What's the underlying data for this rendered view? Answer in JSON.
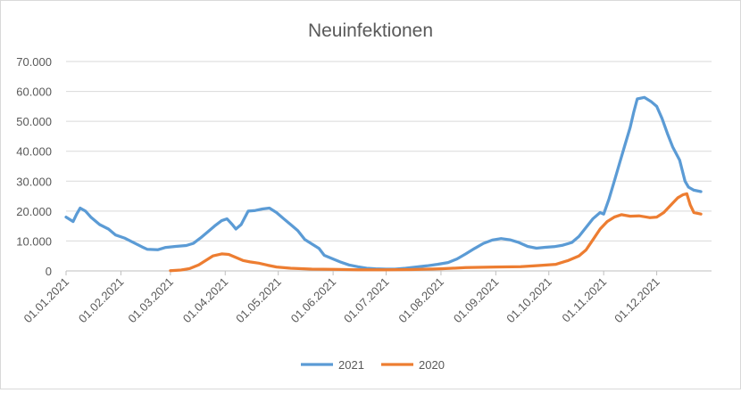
{
  "chart_data": {
    "type": "line",
    "title": "Neuinfektionen",
    "xlabel": "",
    "ylabel": "",
    "ylim": [
      0,
      70000
    ],
    "y_ticks": [
      0,
      10000,
      20000,
      30000,
      40000,
      50000,
      60000,
      70000
    ],
    "y_tick_labels": [
      "0",
      "10.000",
      "20.000",
      "30.000",
      "40.000",
      "50.000",
      "60.000",
      "70.000"
    ],
    "x_tick_labels": [
      "01.01.2021",
      "01.02.2021",
      "01.03.2021",
      "01.04.2021",
      "01.05.2021",
      "01.06.2021",
      "01.07.2021",
      "01.08.2021",
      "01.09.2021",
      "01.10.2021",
      "01.11.2021",
      "01.12.2021"
    ],
    "xlim": [
      "2021-01-01",
      "2021-12-31"
    ],
    "grid": true,
    "legend_position": "bottom",
    "series": [
      {
        "name": "2021",
        "color": "#5b9bd5",
        "points": [
          [
            "2021-01-01",
            18000
          ],
          [
            "2021-01-05",
            16500
          ],
          [
            "2021-01-07",
            19000
          ],
          [
            "2021-01-09",
            21000
          ],
          [
            "2021-01-12",
            20000
          ],
          [
            "2021-01-15",
            18000
          ],
          [
            "2021-01-20",
            15500
          ],
          [
            "2021-01-25",
            14000
          ],
          [
            "2021-01-29",
            12000
          ],
          [
            "2021-02-03",
            11000
          ],
          [
            "2021-02-08",
            9500
          ],
          [
            "2021-02-13",
            8000
          ],
          [
            "2021-02-16",
            7200
          ],
          [
            "2021-02-22",
            7100
          ],
          [
            "2021-02-26",
            7800
          ],
          [
            "2021-03-04",
            8200
          ],
          [
            "2021-03-10",
            8500
          ],
          [
            "2021-03-14",
            9200
          ],
          [
            "2021-03-18",
            11000
          ],
          [
            "2021-03-22",
            13000
          ],
          [
            "2021-03-26",
            15000
          ],
          [
            "2021-03-30",
            16800
          ],
          [
            "2021-04-02",
            17400
          ],
          [
            "2021-04-05",
            15500
          ],
          [
            "2021-04-07",
            14000
          ],
          [
            "2021-04-10",
            15500
          ],
          [
            "2021-04-14",
            20000
          ],
          [
            "2021-04-18",
            20200
          ],
          [
            "2021-04-22",
            20700
          ],
          [
            "2021-04-26",
            21000
          ],
          [
            "2021-04-30",
            19500
          ],
          [
            "2021-05-04",
            17500
          ],
          [
            "2021-05-08",
            15500
          ],
          [
            "2021-05-12",
            13500
          ],
          [
            "2021-05-16",
            10500
          ],
          [
            "2021-05-20",
            9000
          ],
          [
            "2021-05-24",
            7500
          ],
          [
            "2021-05-27",
            5200
          ],
          [
            "2021-06-01",
            4000
          ],
          [
            "2021-06-05",
            3000
          ],
          [
            "2021-06-10",
            2000
          ],
          [
            "2021-06-15",
            1400
          ],
          [
            "2021-06-20",
            900
          ],
          [
            "2021-06-25",
            700
          ],
          [
            "2021-07-01",
            600
          ],
          [
            "2021-07-06",
            600
          ],
          [
            "2021-07-12",
            900
          ],
          [
            "2021-07-18",
            1300
          ],
          [
            "2021-07-24",
            1700
          ],
          [
            "2021-07-30",
            2200
          ],
          [
            "2021-08-05",
            2800
          ],
          [
            "2021-08-10",
            4000
          ],
          [
            "2021-08-15",
            5700
          ],
          [
            "2021-08-20",
            7500
          ],
          [
            "2021-08-25",
            9200
          ],
          [
            "2021-08-30",
            10300
          ],
          [
            "2021-09-04",
            10800
          ],
          [
            "2021-09-09",
            10400
          ],
          [
            "2021-09-14",
            9500
          ],
          [
            "2021-09-19",
            8200
          ],
          [
            "2021-09-24",
            7600
          ],
          [
            "2021-09-29",
            7900
          ],
          [
            "2021-10-04",
            8100
          ],
          [
            "2021-10-09",
            8600
          ],
          [
            "2021-10-14",
            9500
          ],
          [
            "2021-10-18",
            11500
          ],
          [
            "2021-10-22",
            14500
          ],
          [
            "2021-10-26",
            17500
          ],
          [
            "2021-10-30",
            19500
          ],
          [
            "2021-11-01",
            19000
          ],
          [
            "2021-11-04",
            24000
          ],
          [
            "2021-11-07",
            30000
          ],
          [
            "2021-11-10",
            36000
          ],
          [
            "2021-11-13",
            42000
          ],
          [
            "2021-11-16",
            48000
          ],
          [
            "2021-11-18",
            53000
          ],
          [
            "2021-11-20",
            57500
          ],
          [
            "2021-11-24",
            58000
          ],
          [
            "2021-11-28",
            56500
          ],
          [
            "2021-12-01",
            55000
          ],
          [
            "2021-12-04",
            51000
          ],
          [
            "2021-12-07",
            46000
          ],
          [
            "2021-12-10",
            41500
          ],
          [
            "2021-12-14",
            37000
          ],
          [
            "2021-12-17",
            30000
          ],
          [
            "2021-12-19",
            28000
          ],
          [
            "2021-12-22",
            27000
          ],
          [
            "2021-12-26",
            26500
          ]
        ]
      },
      {
        "name": "2020",
        "color": "#ed7d31",
        "points": [
          [
            "2021-03-01",
            100
          ],
          [
            "2021-03-07",
            300
          ],
          [
            "2021-03-12",
            800
          ],
          [
            "2021-03-17",
            2000
          ],
          [
            "2021-03-21",
            3500
          ],
          [
            "2021-03-25",
            5000
          ],
          [
            "2021-03-30",
            5700
          ],
          [
            "2021-04-03",
            5500
          ],
          [
            "2021-04-07",
            4500
          ],
          [
            "2021-04-11",
            3500
          ],
          [
            "2021-04-15",
            3000
          ],
          [
            "2021-04-20",
            2600
          ],
          [
            "2021-04-25",
            1900
          ],
          [
            "2021-04-30",
            1300
          ],
          [
            "2021-05-08",
            900
          ],
          [
            "2021-05-20",
            600
          ],
          [
            "2021-06-01",
            500
          ],
          [
            "2021-06-15",
            400
          ],
          [
            "2021-07-01",
            400
          ],
          [
            "2021-07-15",
            450
          ],
          [
            "2021-08-01",
            700
          ],
          [
            "2021-08-15",
            1100
          ],
          [
            "2021-09-01",
            1300
          ],
          [
            "2021-09-15",
            1400
          ],
          [
            "2021-09-25",
            1800
          ],
          [
            "2021-10-05",
            2200
          ],
          [
            "2021-10-12",
            3500
          ],
          [
            "2021-10-18",
            5000
          ],
          [
            "2021-10-22",
            7000
          ],
          [
            "2021-10-26",
            10500
          ],
          [
            "2021-10-30",
            14000
          ],
          [
            "2021-11-03",
            16500
          ],
          [
            "2021-11-07",
            18000
          ],
          [
            "2021-11-11",
            18800
          ],
          [
            "2021-11-16",
            18300
          ],
          [
            "2021-11-21",
            18400
          ],
          [
            "2021-11-27",
            17800
          ],
          [
            "2021-12-01",
            18000
          ],
          [
            "2021-12-05",
            19500
          ],
          [
            "2021-12-09",
            22000
          ],
          [
            "2021-12-13",
            24500
          ],
          [
            "2021-12-16",
            25500
          ],
          [
            "2021-12-18",
            25800
          ],
          [
            "2021-12-20",
            22000
          ],
          [
            "2021-12-22",
            19500
          ],
          [
            "2021-12-26",
            19000
          ]
        ]
      }
    ]
  }
}
